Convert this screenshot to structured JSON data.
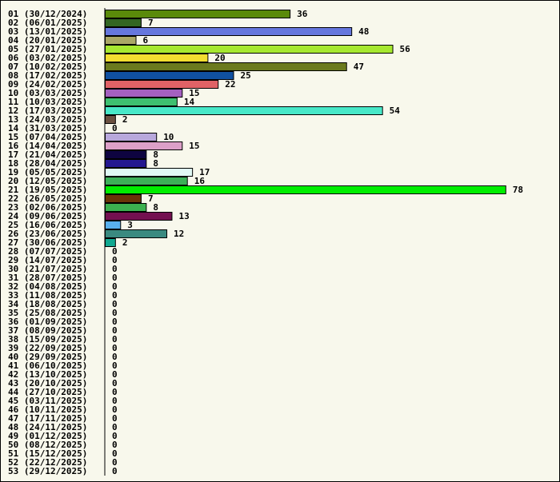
{
  "chart_data": {
    "type": "bar",
    "orientation": "horizontal",
    "title": "",
    "xlabel": "",
    "ylabel": "",
    "grid": false,
    "legend": "none",
    "xlim": [
      0,
      78
    ],
    "categories": [
      "01 (30/12/2024)",
      "02 (06/01/2025)",
      "03 (13/01/2025)",
      "04 (20/01/2025)",
      "05 (27/01/2025)",
      "06 (03/02/2025)",
      "07 (10/02/2025)",
      "08 (17/02/2025)",
      "09 (24/02/2025)",
      "10 (03/03/2025)",
      "11 (10/03/2025)",
      "12 (17/03/2025)",
      "13 (24/03/2025)",
      "14 (31/03/2025)",
      "15 (07/04/2025)",
      "16 (14/04/2025)",
      "17 (21/04/2025)",
      "18 (28/04/2025)",
      "19 (05/05/2025)",
      "20 (12/05/2025)",
      "21 (19/05/2025)",
      "22 (26/05/2025)",
      "23 (02/06/2025)",
      "24 (09/06/2025)",
      "25 (16/06/2025)",
      "26 (23/06/2025)",
      "27 (30/06/2025)",
      "28 (07/07/2025)",
      "29 (14/07/2025)",
      "30 (21/07/2025)",
      "31 (28/07/2025)",
      "32 (04/08/2025)",
      "33 (11/08/2025)",
      "34 (18/08/2025)",
      "35 (25/08/2025)",
      "36 (01/09/2025)",
      "37 (08/09/2025)",
      "38 (15/09/2025)",
      "39 (22/09/2025)",
      "40 (29/09/2025)",
      "41 (06/10/2025)",
      "42 (13/10/2025)",
      "43 (20/10/2025)",
      "44 (27/10/2025)",
      "45 (03/11/2025)",
      "46 (10/11/2025)",
      "47 (17/11/2025)",
      "48 (24/11/2025)",
      "49 (01/12/2025)",
      "50 (08/12/2025)",
      "51 (15/12/2025)",
      "52 (22/12/2025)",
      "53 (29/12/2025)"
    ],
    "values": [
      36,
      7,
      48,
      6,
      56,
      20,
      47,
      25,
      22,
      15,
      14,
      54,
      2,
      0,
      10,
      15,
      8,
      8,
      17,
      16,
      78,
      7,
      8,
      13,
      3,
      12,
      2,
      0,
      0,
      0,
      0,
      0,
      0,
      0,
      0,
      0,
      0,
      0,
      0,
      0,
      0,
      0,
      0,
      0,
      0,
      0,
      0,
      0,
      0,
      0,
      0,
      0,
      0
    ],
    "colors": [
      "#5a8a0a",
      "#336622",
      "#6677dd",
      "#aaa866",
      "#a6e830",
      "#f2dd30",
      "#6b7a1e",
      "#1050a0",
      "#e06266",
      "#a460c0",
      "#3ec070",
      "#48e8c8",
      "#6a5040",
      "#ffffff",
      "#b8a8dc",
      "#dca0c8",
      "#0e0440",
      "#241890",
      "#e0f8f4",
      "#3cb058",
      "#00ee00",
      "#6a3408",
      "#3cb050",
      "#741050",
      "#58b0ee",
      "#3a8a80",
      "#10a890"
    ]
  }
}
